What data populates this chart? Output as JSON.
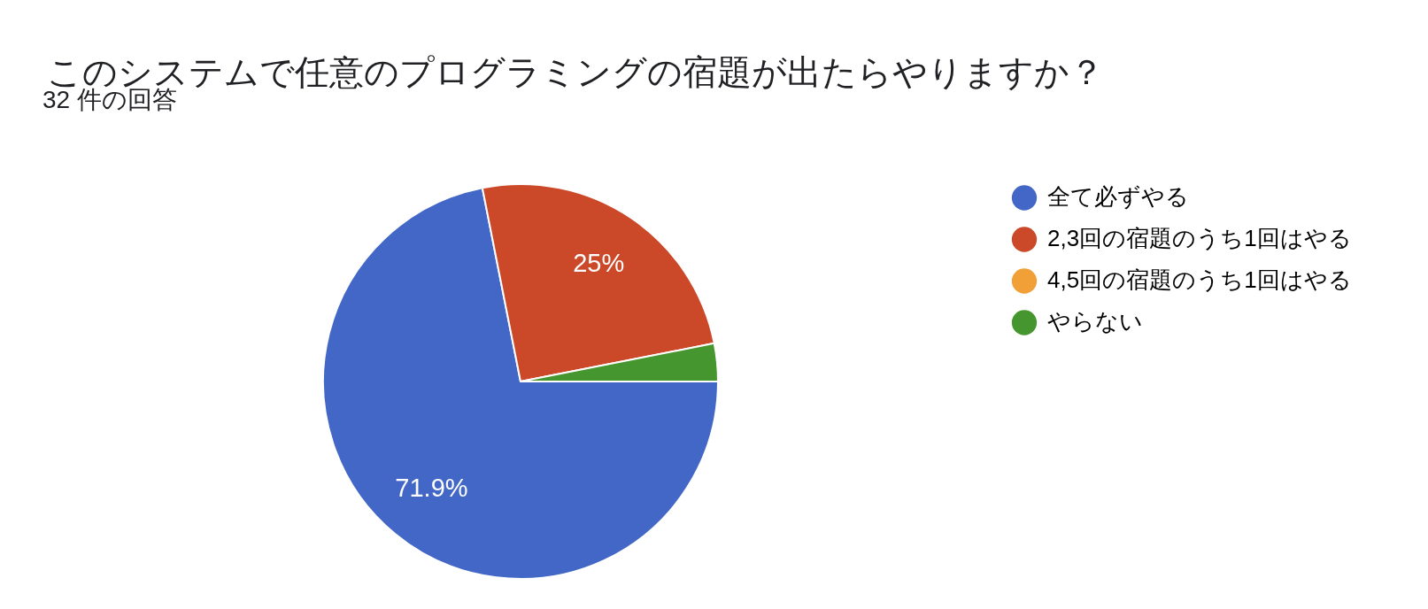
{
  "chart_data": {
    "type": "pie",
    "title": "このシステムで任意のプログラミングの宿題が出たらやりますか？",
    "subtitle": "32 件の回答",
    "categories": [
      "全て必ずやる",
      "2,3回の宿題のうち1回はやる",
      "4,5回の宿題のうち1回はやる",
      "やらない"
    ],
    "values": [
      71.9,
      25,
      0,
      3.1
    ],
    "colors": [
      "#4267c6",
      "#cb4829",
      "#f1a038",
      "#46962f"
    ],
    "value_labels": [
      "71.9%",
      "25%",
      null,
      null
    ],
    "legend": "right"
  }
}
